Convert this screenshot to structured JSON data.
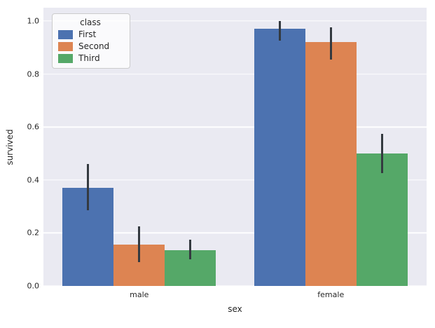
{
  "chart_data": {
    "type": "bar",
    "title": "",
    "xlabel": "sex",
    "ylabel": "survived",
    "categories": [
      "male",
      "female"
    ],
    "series": [
      {
        "name": "First",
        "color": "#4c72b0",
        "values": [
          0.37,
          0.97
        ],
        "ci_low": [
          0.285,
          0.925
        ],
        "ci_high": [
          0.46,
          1.0
        ]
      },
      {
        "name": "Second",
        "color": "#dd8452",
        "values": [
          0.155,
          0.92
        ],
        "ci_low": [
          0.09,
          0.855
        ],
        "ci_high": [
          0.225,
          0.975
        ]
      },
      {
        "name": "Third",
        "color": "#55a868",
        "values": [
          0.135,
          0.5
        ],
        "ci_low": [
          0.1,
          0.425
        ],
        "ci_high": [
          0.175,
          0.575
        ]
      }
    ],
    "ylim": [
      0,
      1.05
    ],
    "yticks": [
      0.0,
      0.2,
      0.4,
      0.6,
      0.8,
      1.0
    ],
    "legend_title": "class",
    "legend_position": "upper left",
    "grid": true,
    "background_color": "#eaeaf2",
    "grid_color": "#ffffff",
    "errorbar_color": "#343a40",
    "text_color": "#262626"
  }
}
